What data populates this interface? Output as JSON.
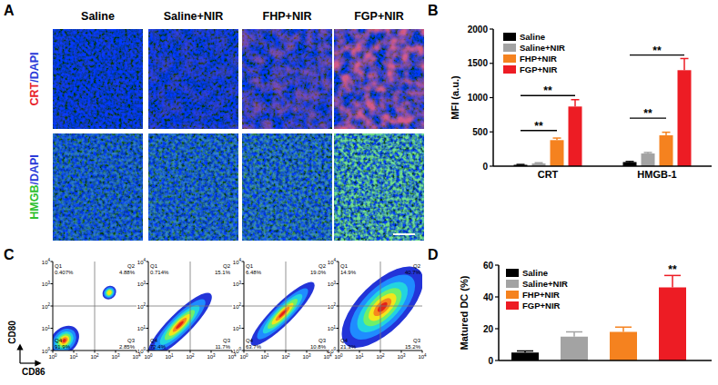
{
  "figure": {
    "panel_labels": [
      "A",
      "B",
      "C",
      "D"
    ],
    "panel_a": {
      "columns": [
        "Saline",
        "Saline+NIR",
        "FHP+NIR",
        "FGP+NIR"
      ],
      "rows": [
        {
          "stain": "CRT",
          "color": "#e8232a",
          "counterstain": "/DAPI",
          "counterstain_color": "#2b3bd9"
        },
        {
          "stain": "HMGB",
          "color": "#2fc12f",
          "counterstain": "/DAPI",
          "counterstain_color": "#2b3bd9"
        }
      ]
    },
    "panel_c": {
      "x_label": "CD86",
      "y_label": "CD80",
      "lim": [
        0,
        4
      ],
      "gate": [
        2,
        2
      ],
      "ticks": [
        {
          "value": 0,
          "label": "10",
          "sup": "0"
        },
        {
          "value": 1,
          "label": "10",
          "sup": "1"
        },
        {
          "value": 2,
          "label": "10",
          "sup": "2"
        },
        {
          "value": 3,
          "label": "10",
          "sup": "3"
        },
        {
          "value": 4,
          "label": "10",
          "sup": "4"
        }
      ],
      "plots": [
        {
          "quadrants": [
            {
              "name": "Q1",
              "label": "0.407%"
            },
            {
              "name": "Q2",
              "label": "4.88%"
            },
            {
              "name": "Q3",
              "label": "2.85%"
            },
            {
              "name": "Q4",
              "label": "91.9%"
            }
          ]
        },
        {
          "quadrants": [
            {
              "name": "Q1",
              "label": "0.714%"
            },
            {
              "name": "Q2",
              "label": "15.1%"
            },
            {
              "name": "Q3",
              "label": "11.7%"
            },
            {
              "name": "Q4",
              "label": "72.4%"
            }
          ]
        },
        {
          "quadrants": [
            {
              "name": "Q1",
              "label": "6.48%"
            },
            {
              "name": "Q2",
              "label": "19.0%"
            },
            {
              "name": "Q3",
              "label": "10.8%"
            },
            {
              "name": "Q4",
              "label": "63.7%"
            }
          ]
        },
        {
          "quadrants": [
            {
              "name": "Q1",
              "label": "14.9%"
            },
            {
              "name": "Q2",
              "label": "40.7%"
            },
            {
              "name": "Q3",
              "label": "15.2%"
            },
            {
              "name": "Q4",
              "label": "21.3%"
            }
          ]
        }
      ]
    }
  },
  "chart_data": [
    {
      "type": "bar",
      "y_label": "MFI (a.u.)",
      "categories": [
        "CRT",
        "HMGB-1"
      ],
      "series": [
        {
          "name": "Saline",
          "color": "#000000",
          "values": [
            20,
            60
          ],
          "errors": [
            5,
            8
          ]
        },
        {
          "name": "Saline+NIR",
          "color": "#a3a3a3",
          "values": [
            40,
            185
          ],
          "errors": [
            10,
            15
          ]
        },
        {
          "name": "FHP+NIR",
          "color": "#f5821f",
          "values": [
            380,
            450
          ],
          "errors": [
            30,
            45
          ]
        },
        {
          "name": "FGP+NIR",
          "color": "#ed1c24",
          "values": [
            870,
            1400
          ],
          "errors": [
            100,
            170
          ]
        }
      ],
      "ylim": [
        0,
        2000
      ],
      "yticks": [
        0,
        500,
        1000,
        1500,
        2000
      ],
      "grid": false,
      "legend": "top-left",
      "annotations": [
        {
          "text": "**",
          "category": 0,
          "from": 0,
          "to": 2,
          "y": 520
        },
        {
          "text": "**",
          "category": 0,
          "from": 0,
          "to": 3,
          "y": 1030
        },
        {
          "text": "**",
          "category": 1,
          "from": 0,
          "to": 2,
          "y": 700
        },
        {
          "text": "**",
          "category": 1,
          "from": 0,
          "to": 3,
          "y": 1620
        }
      ]
    },
    {
      "type": "bar",
      "y_label": "Matured DC (%)",
      "categories": [
        null
      ],
      "series": [
        {
          "name": "Saline",
          "color": "#000000",
          "values": [
            5
          ],
          "errors": [
            1
          ]
        },
        {
          "name": "Saline+NIR",
          "color": "#a3a3a3",
          "values": [
            15
          ],
          "errors": [
            3
          ]
        },
        {
          "name": "FHP+NIR",
          "color": "#f5821f",
          "values": [
            18
          ],
          "errors": [
            3
          ]
        },
        {
          "name": "FGP+NIR",
          "color": "#ed1c24",
          "values": [
            46
          ],
          "errors": [
            7.5
          ]
        }
      ],
      "ylim": [
        0,
        60
      ],
      "yticks": [
        0,
        20,
        40,
        60
      ],
      "grid": false,
      "legend": "top-left",
      "annotations": [
        {
          "text": "**",
          "category": 0,
          "series": 3
        }
      ]
    }
  ]
}
